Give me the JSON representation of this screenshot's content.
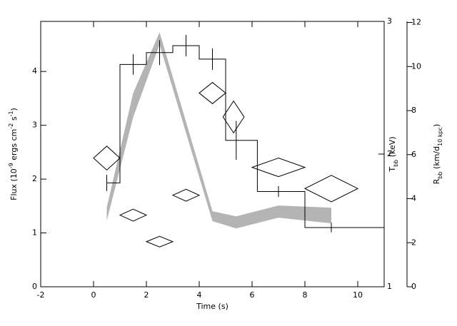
{
  "chart_data": {
    "type": "step",
    "x_label": "Time (s)",
    "y_label": [
      "Flux (10",
      "-9",
      " ergs cm",
      "-2",
      " s",
      "-1",
      ")"
    ],
    "y2_label": [
      "T",
      "bb",
      " (keV)"
    ],
    "y3_label": [
      "R",
      "bb",
      " (km/d",
      "10 kpc",
      ")"
    ],
    "xlim": [
      -2,
      11
    ],
    "xticks": [
      -2,
      0,
      2,
      4,
      6,
      8,
      10
    ],
    "ylim": [
      0,
      4.93
    ],
    "yticks": [
      0,
      1,
      2,
      3,
      4
    ],
    "y2lim": [
      1,
      3
    ],
    "y2ticks": [
      1,
      2,
      3
    ],
    "y3lim": [
      0,
      12.05
    ],
    "y3ticks": [
      0,
      2,
      4,
      6,
      8,
      10,
      12
    ],
    "flux": {
      "bins": [
        0.5,
        1,
        2,
        3,
        4,
        5,
        6.2,
        8,
        11
      ],
      "values": [
        1.93,
        4.13,
        4.35,
        4.48,
        4.23,
        2.72,
        1.77,
        1.1
      ],
      "error_x": [
        0.5,
        1.5,
        2.5,
        3.5,
        4.5,
        5.4,
        7,
        9
      ],
      "errors": [
        0.15,
        0.19,
        0.23,
        0.2,
        0.2,
        0.36,
        0.1,
        0.09
      ],
      "color": "#000000"
    },
    "temperature": {
      "axis": "y2",
      "x": [
        0.5,
        1.5,
        2.5,
        3.5,
        4.5,
        5.3,
        7,
        9
      ],
      "x_errors": [
        0.5,
        0.5,
        0.5,
        0.5,
        0.5,
        0.4,
        1,
        1
      ],
      "values": [
        1.97,
        1.54,
        1.34,
        1.69,
        2.46,
        2.28,
        1.9,
        1.74
      ],
      "errors": [
        0.09,
        0.045,
        0.04,
        0.045,
        0.08,
        0.12,
        0.07,
        0.1
      ],
      "color": "#000000"
    },
    "radius": {
      "axis": "y3",
      "x": [
        0.5,
        1.5,
        2.5,
        4.5,
        5.4,
        7,
        9
      ],
      "upper": [
        3.6,
        8.8,
        11.55,
        3.43,
        3.2,
        3.69,
        3.59
      ],
      "lower": [
        3.0,
        7.7,
        11.0,
        2.98,
        2.65,
        3.14,
        2.88
      ],
      "color": "#b4b4b4"
    }
  }
}
